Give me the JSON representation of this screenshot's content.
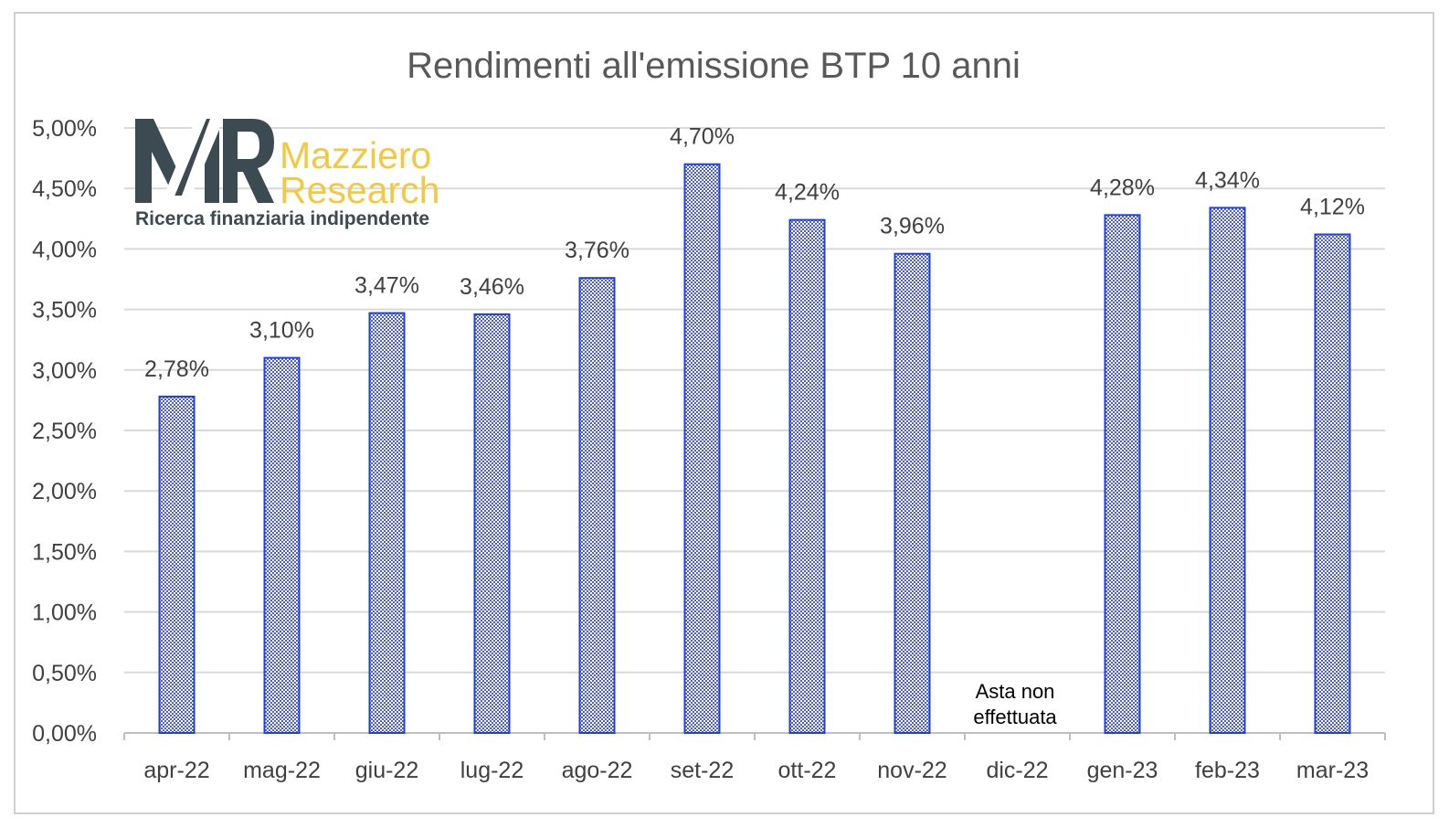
{
  "chart_data": {
    "type": "bar",
    "title": "Rendimenti all'emissione BTP 10 anni",
    "categories": [
      "apr-22",
      "mag-22",
      "giu-22",
      "lug-22",
      "ago-22",
      "set-22",
      "ott-22",
      "nov-22",
      "dic-22",
      "gen-23",
      "feb-23",
      "mar-23"
    ],
    "values": [
      2.78,
      3.1,
      3.47,
      3.46,
      3.76,
      4.7,
      4.24,
      3.96,
      null,
      4.28,
      4.34,
      4.12
    ],
    "data_labels": [
      "2,78%",
      "3,10%",
      "3,47%",
      "3,46%",
      "3,76%",
      "4,70%",
      "4,24%",
      "3,96%",
      "",
      "4,28%",
      "4,34%",
      "4,12%"
    ],
    "ylim": [
      0,
      5
    ],
    "y_ticks": [
      "0,00%",
      "0,50%",
      "1,00%",
      "1,50%",
      "2,00%",
      "2,50%",
      "3,00%",
      "3,50%",
      "4,00%",
      "4,50%",
      "5,00%"
    ],
    "y_tick_values": [
      0,
      0.5,
      1,
      1.5,
      2,
      2.5,
      3,
      3.5,
      4,
      4.5,
      5
    ],
    "grid": true,
    "annotation": {
      "category": "dic-22",
      "lines": [
        "Asta non",
        "effettuata"
      ]
    },
    "colors": {
      "bar_border": "#1f3fe0",
      "bar_fill_a": "#4a5dd8",
      "bar_fill_b": "#ffffff",
      "grid": "#d9d9d9",
      "text": "#404040"
    }
  },
  "logo": {
    "monogram": "MR",
    "name_line1": "Mazziero",
    "name_line2": "Research",
    "tagline": "Ricerca finanziaria indipendente",
    "colors": {
      "monogram": "#3c4a52",
      "name": "#f5c842"
    }
  }
}
